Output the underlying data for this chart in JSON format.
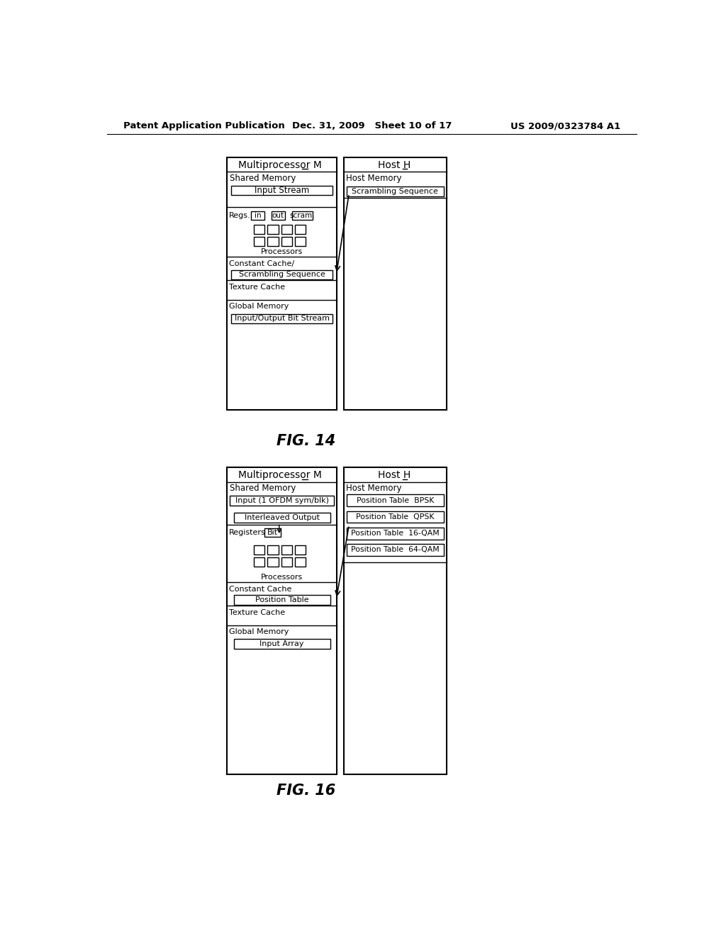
{
  "header": {
    "left": "Patent Application Publication",
    "center": "Dec. 31, 2009   Sheet 10 of 17",
    "right": "US 2009/0323784 A1"
  },
  "fig14_caption": "FIG. 14",
  "fig16_caption": "FIG. 16",
  "bg_color": "#ffffff"
}
